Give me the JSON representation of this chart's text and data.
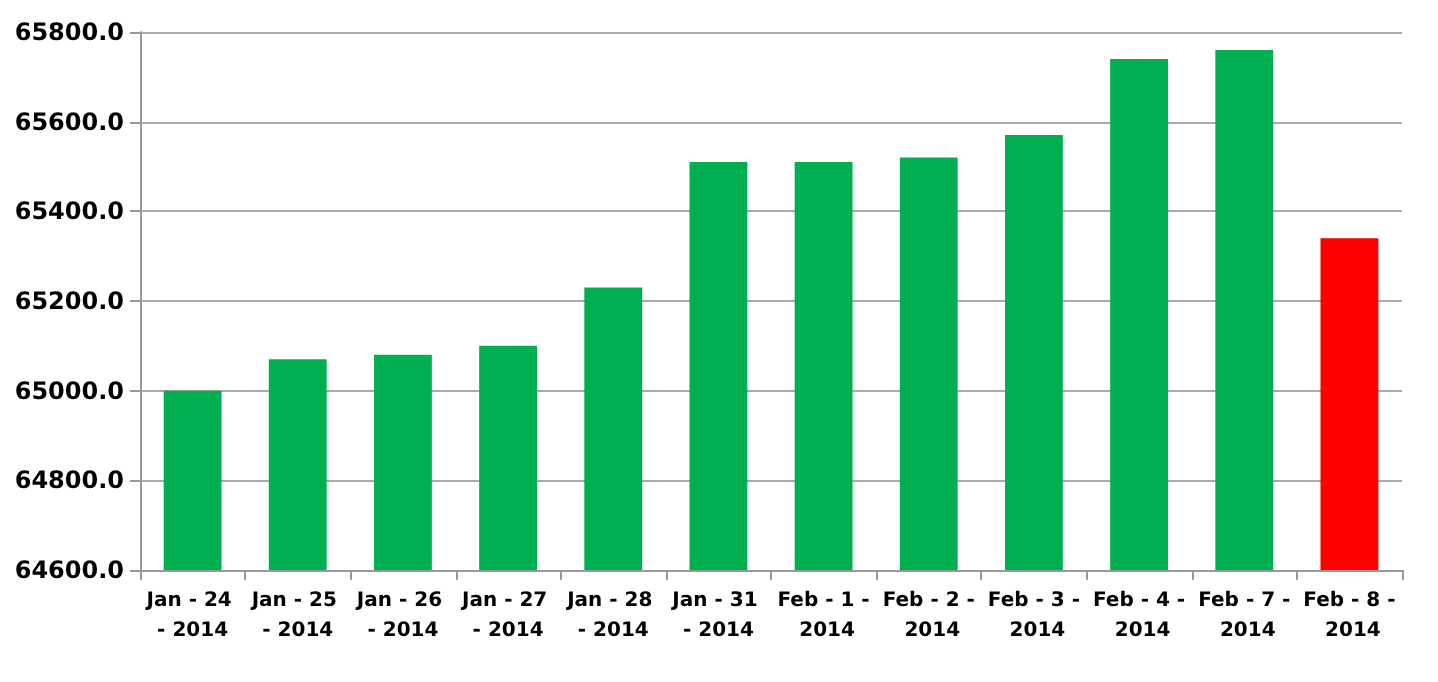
{
  "chart_data": {
    "type": "bar",
    "categories": [
      "Jan - 24 - 2014",
      "Jan - 25 - 2014",
      "Jan - 26 - 2014",
      "Jan - 27 - 2014",
      "Jan - 28 - 2014",
      "Jan - 31 - 2014",
      "Feb - 1 - 2014",
      "Feb - 2 - 2014",
      "Feb - 3 - 2014",
      "Feb - 4 - 2014",
      "Feb - 7 - 2014",
      "Feb - 8 - 2014"
    ],
    "values": [
      65000,
      65070,
      65080,
      65100,
      65230,
      65510,
      65510,
      65520,
      65570,
      65740,
      65760,
      65340
    ],
    "colors": [
      "#00b050",
      "#00b050",
      "#00b050",
      "#00b050",
      "#00b050",
      "#00b050",
      "#00b050",
      "#00b050",
      "#00b050",
      "#00b050",
      "#00b050",
      "#ff0000"
    ],
    "ylim": [
      64600,
      65800
    ],
    "yticks": [
      {
        "value": 64600,
        "label": "64600.0"
      },
      {
        "value": 64800,
        "label": "64800.0"
      },
      {
        "value": 65000,
        "label": "65000.0"
      },
      {
        "value": 65200,
        "label": "65200.0"
      },
      {
        "value": 65400,
        "label": "65400.0"
      },
      {
        "value": 65600,
        "label": "65600.0"
      },
      {
        "value": 65800,
        "label": "65800.0"
      }
    ],
    "grid": true
  }
}
